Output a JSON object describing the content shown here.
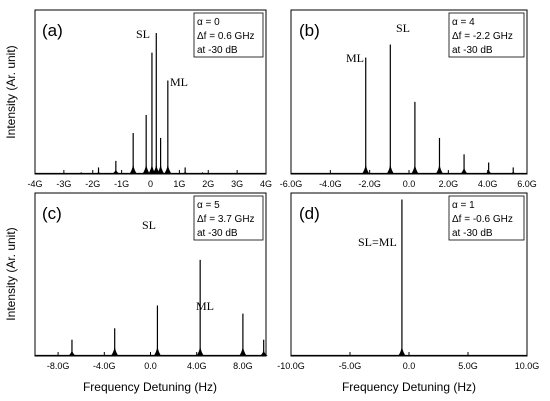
{
  "figure": {
    "ylabel": "Intensity (Ar. unit)",
    "xlabel": "Frequency Detuning (Hz)"
  },
  "chart_data": [
    {
      "type": "line",
      "panel_label": "(a)",
      "info": [
        "α = 0",
        "Δf = 0.6 GHz",
        "at -30 dB"
      ],
      "annotations": [
        "SL",
        "ML"
      ],
      "xlim": [
        -4,
        4
      ],
      "ylim": [
        0,
        1
      ],
      "x_ticks": [
        -4,
        -3,
        -2,
        -1,
        0,
        1,
        2,
        3,
        4
      ],
      "x_tick_labels": [
        "-4G",
        "-3G",
        "-2G",
        "-1G",
        "0",
        "1G",
        "2G",
        "3G",
        "4G"
      ],
      "series": [
        {
          "x": [
            -2.4,
            -1.8,
            -1.2,
            -0.6,
            -0.15,
            0.05,
            0.2,
            0.35,
            0.6,
            1.2,
            1.8
          ],
          "y": [
            0.01,
            0.04,
            0.08,
            0.25,
            0.36,
            0.74,
            0.86,
            0.22,
            0.57,
            0.04,
            0.01
          ]
        }
      ]
    },
    {
      "type": "line",
      "panel_label": "(b)",
      "info": [
        "α = 4",
        "Δf = -2.2 GHz",
        "at -30 dB"
      ],
      "annotations": [
        "ML",
        "SL"
      ],
      "xlim": [
        -6,
        6
      ],
      "ylim": [
        0,
        1
      ],
      "x_ticks": [
        -6,
        -4,
        -2,
        0,
        2,
        4,
        6
      ],
      "x_tick_labels": [
        "-6.0G",
        "-4.0G",
        "-2.0G",
        "0.0",
        "2.0G",
        "4.0G",
        "6.0G"
      ],
      "series": [
        {
          "x": [
            -2.2,
            -0.95,
            0.3,
            1.55,
            2.8,
            4.05,
            5.3
          ],
          "y": [
            0.71,
            0.79,
            0.44,
            0.22,
            0.12,
            0.07,
            0.04
          ]
        }
      ]
    },
    {
      "type": "line",
      "panel_label": "(c)",
      "info": [
        "α = 5",
        "Δf = 3.7 GHz",
        "at -30 dB"
      ],
      "annotations": [
        "SL",
        "ML"
      ],
      "xlim": [
        -10,
        10
      ],
      "ylim": [
        0,
        1
      ],
      "x_ticks": [
        -8,
        -4,
        0,
        4,
        8
      ],
      "x_tick_labels": [
        "-8.0G",
        "-4.0G",
        "0.0",
        "4.0G",
        "8.0G"
      ],
      "series": [
        {
          "x": [
            -10.5,
            -6.8,
            -3.1,
            0.6,
            4.3,
            8.0,
            9.8
          ],
          "y": [
            0.02,
            0.1,
            0.17,
            0.31,
            0.59,
            0.26,
            0.1
          ]
        }
      ]
    },
    {
      "type": "line",
      "panel_label": "(d)",
      "info": [
        "α = 1",
        "Δf = -0.6 GHz",
        "at -30 dB"
      ],
      "annotations": [
        "SL=ML"
      ],
      "xlim": [
        -10,
        10
      ],
      "ylim": [
        0,
        1
      ],
      "x_ticks": [
        -10,
        -5,
        0,
        5,
        10
      ],
      "x_tick_labels": [
        "-10.0G",
        "-5.0G",
        "0.0",
        "5.0G",
        "10.0G"
      ],
      "series": [
        {
          "x": [
            -0.6
          ],
          "y": [
            0.96
          ]
        }
      ]
    }
  ]
}
